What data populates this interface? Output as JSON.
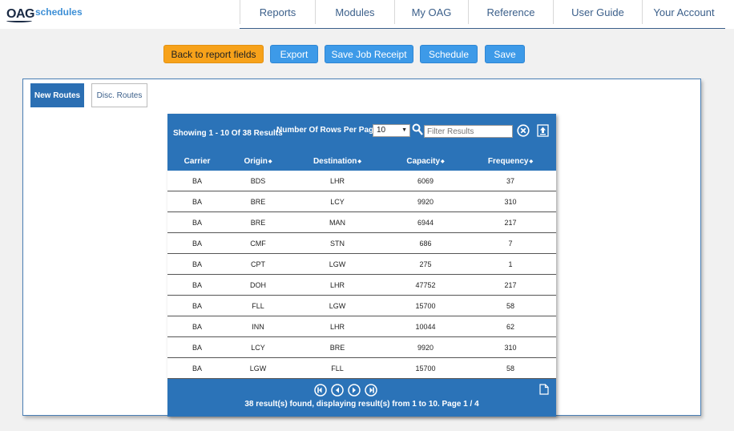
{
  "logo": {
    "brand": "OAG",
    "product": "schedules"
  },
  "nav": [
    "Reports",
    "Modules",
    "My OAG",
    "Reference",
    "User Guide",
    "Your Account"
  ],
  "buttons": {
    "back": "Back to report fields",
    "export": "Export",
    "save_job_receipt": "Save Job Receipt",
    "schedule": "Schedule",
    "save": "Save"
  },
  "tabs": {
    "new_routes": "New Routes",
    "disc_routes": "Disc. Routes"
  },
  "grid": {
    "showing": "Showing 1 - 10 Of 38 Results",
    "rows_per_page_label": "Number Of Rows Per Page",
    "rows_per_page_value": "10",
    "filter_placeholder": "Filter Results",
    "columns": [
      "Carrier",
      "Origin",
      "Destination",
      "Capacity",
      "Frequency"
    ],
    "rows": [
      [
        "BA",
        "BDS",
        "LHR",
        "6069",
        "37"
      ],
      [
        "BA",
        "BRE",
        "LCY",
        "9920",
        "310"
      ],
      [
        "BA",
        "BRE",
        "MAN",
        "6944",
        "217"
      ],
      [
        "BA",
        "CMF",
        "STN",
        "686",
        "7"
      ],
      [
        "BA",
        "CPT",
        "LGW",
        "275",
        "1"
      ],
      [
        "BA",
        "DOH",
        "LHR",
        "47752",
        "217"
      ],
      [
        "BA",
        "FLL",
        "LGW",
        "15700",
        "58"
      ],
      [
        "BA",
        "INN",
        "LHR",
        "10044",
        "62"
      ],
      [
        "BA",
        "LCY",
        "BRE",
        "9920",
        "310"
      ],
      [
        "BA",
        "LGW",
        "FLL",
        "15700",
        "58"
      ]
    ],
    "summary": "38 result(s) found, displaying result(s) from 1 to 10. Page 1 / 4"
  },
  "colors": {
    "primary": "#2b73b8",
    "button": "#3d9ae8",
    "accent": "#f7a21a"
  }
}
